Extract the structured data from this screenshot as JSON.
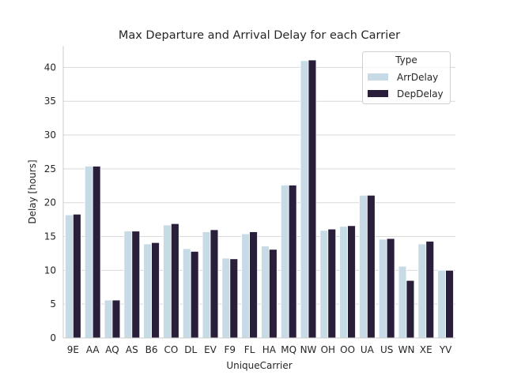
{
  "chart_data": {
    "type": "bar",
    "title": "Max Departure and Arrival Delay for each Carrier",
    "xlabel": "UniqueCarrier",
    "ylabel": "Delay [hours]",
    "ylim": [
      0,
      43.2
    ],
    "yticks": [
      0,
      5,
      10,
      15,
      20,
      25,
      30,
      35,
      40
    ],
    "grid": "horizontal",
    "legend": {
      "title": "Type",
      "placement": "top-right"
    },
    "categories": [
      "9E",
      "AA",
      "AQ",
      "AS",
      "B6",
      "CO",
      "DL",
      "EV",
      "F9",
      "FL",
      "HA",
      "MQ",
      "NW",
      "OH",
      "OO",
      "UA",
      "US",
      "WN",
      "XE",
      "YV"
    ],
    "series": [
      {
        "name": "ArrDelay",
        "color": "#c6dbe6",
        "values": [
          18.2,
          25.4,
          5.6,
          15.8,
          13.9,
          16.7,
          13.2,
          15.7,
          11.8,
          15.4,
          13.6,
          22.6,
          41.0,
          15.9,
          16.5,
          21.1,
          14.6,
          10.6,
          13.9,
          10.0
        ]
      },
      {
        "name": "DepDelay",
        "color": "#2a1f3b",
        "values": [
          18.3,
          25.4,
          5.6,
          15.8,
          14.1,
          16.9,
          12.8,
          16.0,
          11.7,
          15.7,
          13.1,
          22.6,
          41.1,
          16.1,
          16.6,
          21.1,
          14.7,
          8.5,
          14.3,
          10.0
        ]
      }
    ]
  }
}
